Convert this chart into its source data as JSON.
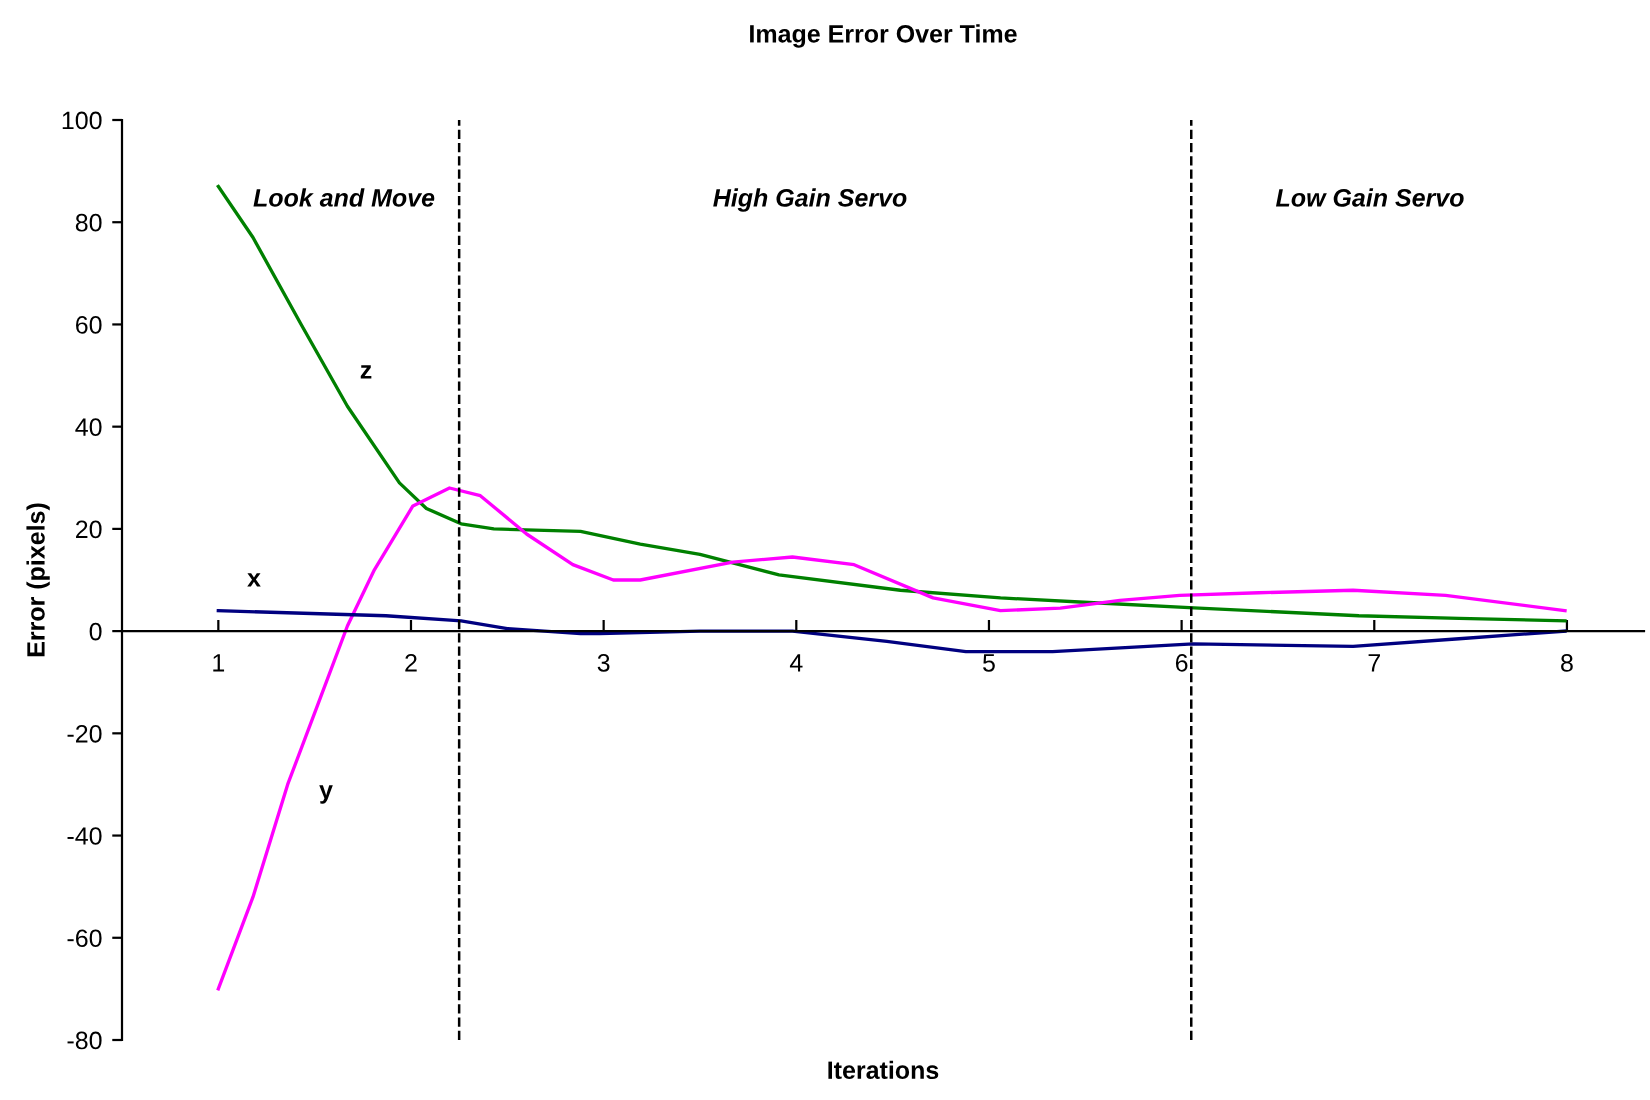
{
  "chart_data": {
    "type": "line",
    "title": "Image Error Over Time",
    "xlabel": "Iterations",
    "ylabel": "Error (pixels)",
    "xlim": [
      0.5,
      8.4
    ],
    "ylim": [
      -80,
      100
    ],
    "xticks": [
      1,
      2,
      3,
      4,
      5,
      6,
      7,
      8
    ],
    "yticks": [
      -80,
      -60,
      -40,
      -20,
      0,
      20,
      40,
      60,
      80,
      100
    ],
    "grid": false,
    "legend": false,
    "marker": "none",
    "line_style": "solid",
    "series": [
      {
        "color": "#008000",
        "x": [
          1,
          1.18,
          1.43,
          1.67,
          1.94,
          2.08,
          2.26,
          2.43,
          2.88,
          3.19,
          3.5,
          3.91,
          4.54,
          5.06,
          5.57,
          6.09,
          6.92,
          7.44,
          7.99
        ],
        "values": [
          87,
          77,
          60,
          44,
          29,
          24,
          21,
          20,
          19.5,
          17,
          15,
          11,
          8,
          6.5,
          5.5,
          4.5,
          3,
          2.5,
          2
        ]
      },
      {
        "color": "#ff00ff",
        "x": [
          1,
          1.18,
          1.36,
          1.53,
          1.67,
          1.81,
          2.01,
          2.2,
          2.36,
          2.6,
          2.84,
          3.05,
          3.19,
          3.67,
          3.98,
          4.3,
          4.71,
          5.06,
          5.37,
          5.68,
          5.99,
          6.4,
          6.89,
          7.37,
          7.99
        ],
        "values": [
          -70,
          -52,
          -30,
          -13,
          1,
          12,
          24.5,
          28,
          26.5,
          19,
          13,
          10,
          10,
          13.5,
          14.5,
          13,
          6.5,
          4,
          4.5,
          6,
          7,
          7.5,
          8,
          7,
          4
        ]
      },
      {
        "color": "#000080",
        "x": [
          1,
          1.87,
          2.26,
          2.5,
          2.88,
          2.98,
          3.5,
          3.98,
          4.47,
          4.88,
          5.33,
          6.06,
          6.89,
          7.44,
          7.99
        ],
        "values": [
          4,
          3,
          2,
          0.5,
          -0.5,
          -0.5,
          0,
          0,
          -2,
          -4,
          -4,
          -2.5,
          -3,
          -1.5,
          0
        ]
      }
    ],
    "ref_lines": [
      {
        "axis": "x",
        "value": 2.25,
        "label": null,
        "color": "#000000",
        "line_style": "dashed"
      },
      {
        "axis": "x",
        "value": 6.05,
        "label": null,
        "color": "#000000",
        "line_style": "dashed"
      }
    ],
    "annotations": [
      "Look and Move",
      "High Gain Servo",
      "Low Gain Servo",
      "z",
      "x",
      "y"
    ]
  }
}
